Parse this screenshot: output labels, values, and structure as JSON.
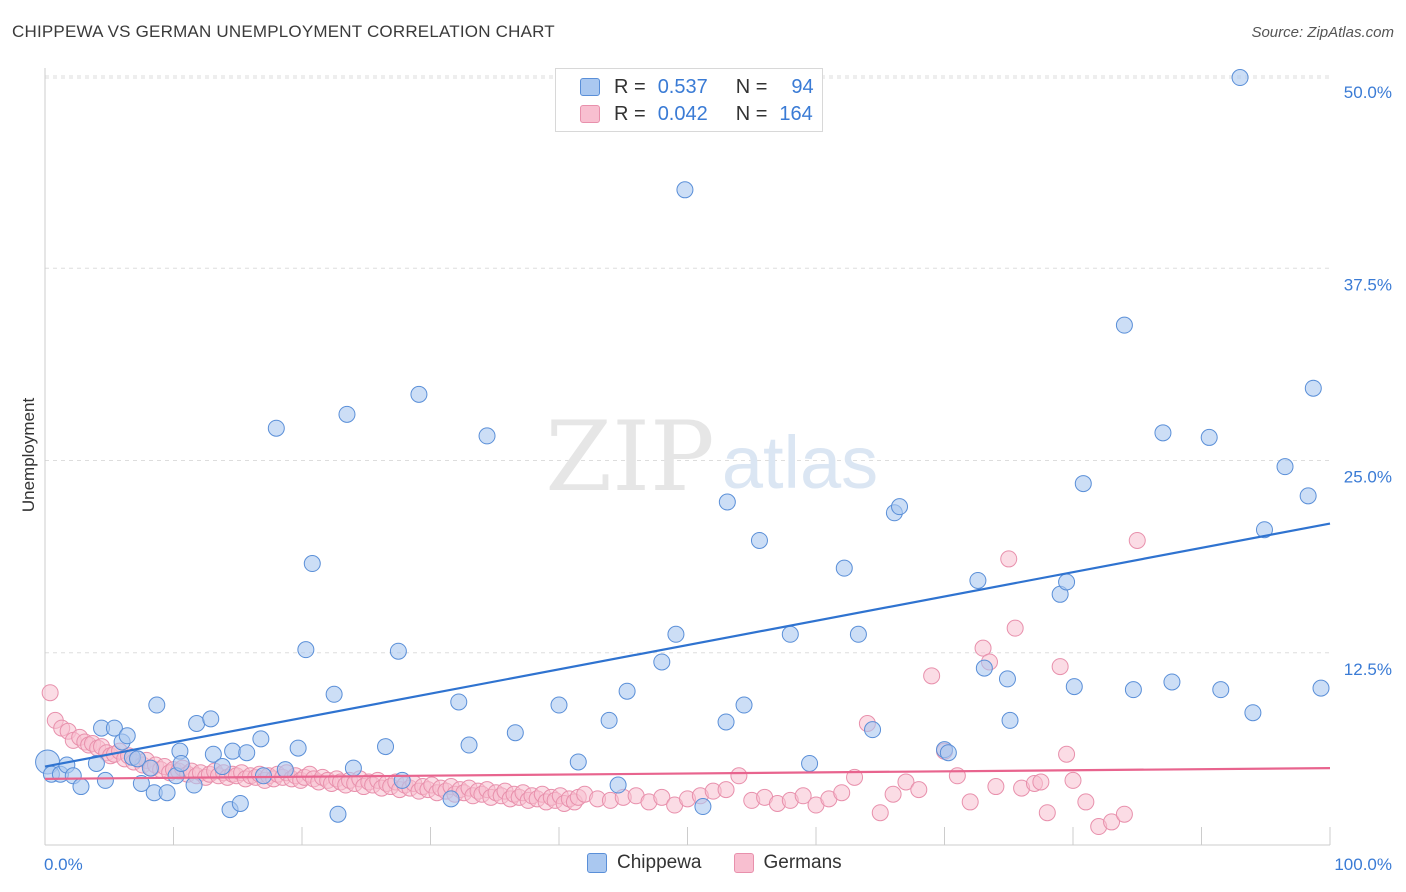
{
  "title": "CHIPPEWA VS GERMAN UNEMPLOYMENT CORRELATION CHART",
  "source": "Source: ZipAtlas.com",
  "watermark": {
    "zip": "ZIP",
    "atlas": "atlas"
  },
  "colors": {
    "chippewa_fill": "#aac8f0",
    "chippewa_stroke": "#5a8fd8",
    "chippewa_line": "#2f73d0",
    "germans_fill": "#f8bfd0",
    "germans_stroke": "#e890ac",
    "germans_line": "#e8648e",
    "tick_label": "#3a7bd5",
    "grid": "#dddddd"
  },
  "legend_top": [
    {
      "r_label": "R =",
      "r_value": "0.537",
      "n_label": "N =",
      "n_value": "94",
      "series": "Chippewa"
    },
    {
      "r_label": "R =",
      "r_value": "0.042",
      "n_label": "N =",
      "n_value": "164",
      "series": "Germans"
    }
  ],
  "chart_data": {
    "type": "scatter",
    "title": "CHIPPEWA VS GERMAN UNEMPLOYMENT CORRELATION CHART",
    "xlabel": "",
    "ylabel": "Unemployment",
    "xlim": [
      0,
      100
    ],
    "ylim": [
      0,
      51
    ],
    "x_tick_labels": [
      "0.0%",
      "100.0%"
    ],
    "y_ticks": [
      12.5,
      25.0,
      37.5,
      50.0
    ],
    "y_tick_labels": [
      "12.5%",
      "25.0%",
      "37.5%",
      "50.0%"
    ],
    "grid": "horizontal dashed",
    "legend": "bottom-center",
    "series": [
      {
        "name": "Chippewa",
        "trend": {
          "x": [
            0,
            100
          ],
          "y": [
            5.1,
            20.9
          ]
        },
        "points": [
          [
            0.2,
            5.4
          ],
          [
            0.5,
            4.6
          ],
          [
            1.2,
            4.6
          ],
          [
            1.7,
            5.2
          ],
          [
            2.2,
            4.5
          ],
          [
            2.8,
            3.8
          ],
          [
            4.0,
            5.3
          ],
          [
            4.4,
            7.6
          ],
          [
            4.7,
            4.2
          ],
          [
            5.4,
            7.6
          ],
          [
            6.0,
            6.7
          ],
          [
            6.4,
            7.1
          ],
          [
            6.8,
            5.7
          ],
          [
            7.2,
            5.6
          ],
          [
            7.5,
            4.0
          ],
          [
            8.2,
            5.0
          ],
          [
            8.5,
            3.4
          ],
          [
            8.7,
            9.1
          ],
          [
            9.5,
            3.4
          ],
          [
            10.2,
            4.5
          ],
          [
            10.5,
            6.1
          ],
          [
            10.6,
            5.3
          ],
          [
            11.6,
            3.9
          ],
          [
            11.8,
            7.9
          ],
          [
            12.9,
            8.2
          ],
          [
            13.1,
            5.9
          ],
          [
            13.8,
            5.1
          ],
          [
            14.4,
            2.3
          ],
          [
            14.6,
            6.1
          ],
          [
            15.2,
            2.7
          ],
          [
            15.7,
            6.0
          ],
          [
            16.8,
            6.9
          ],
          [
            17.0,
            4.5
          ],
          [
            18.0,
            27.1
          ],
          [
            18.7,
            4.9
          ],
          [
            19.7,
            6.3
          ],
          [
            20.3,
            12.7
          ],
          [
            20.8,
            18.3
          ],
          [
            22.5,
            9.8
          ],
          [
            22.8,
            2.0
          ],
          [
            23.5,
            28.0
          ],
          [
            24.0,
            5.0
          ],
          [
            26.5,
            6.4
          ],
          [
            27.5,
            12.6
          ],
          [
            27.8,
            4.2
          ],
          [
            29.1,
            29.3
          ],
          [
            31.6,
            3.0
          ],
          [
            32.2,
            9.3
          ],
          [
            33.0,
            6.5
          ],
          [
            34.4,
            26.6
          ],
          [
            36.6,
            7.3
          ],
          [
            40.0,
            9.1
          ],
          [
            41.5,
            5.4
          ],
          [
            43.9,
            8.1
          ],
          [
            44.6,
            3.9
          ],
          [
            45.3,
            10.0
          ],
          [
            48.0,
            11.9
          ],
          [
            49.1,
            13.7
          ],
          [
            49.8,
            42.6
          ],
          [
            51.2,
            2.5
          ],
          [
            53.0,
            8.0
          ],
          [
            53.1,
            22.3
          ],
          [
            54.4,
            9.1
          ],
          [
            55.6,
            19.8
          ],
          [
            58.0,
            13.7
          ],
          [
            59.5,
            5.3
          ],
          [
            62.2,
            18.0
          ],
          [
            63.3,
            13.7
          ],
          [
            64.4,
            7.5
          ],
          [
            66.1,
            21.6
          ],
          [
            66.5,
            22.0
          ],
          [
            70.0,
            6.2
          ],
          [
            70.3,
            6.0
          ],
          [
            72.6,
            17.2
          ],
          [
            73.1,
            11.5
          ],
          [
            74.9,
            10.8
          ],
          [
            75.1,
            8.1
          ],
          [
            79.0,
            16.3
          ],
          [
            79.5,
            17.1
          ],
          [
            80.1,
            10.3
          ],
          [
            80.8,
            23.5
          ],
          [
            84.0,
            33.8
          ],
          [
            84.7,
            10.1
          ],
          [
            87.0,
            26.8
          ],
          [
            87.7,
            10.6
          ],
          [
            90.6,
            26.5
          ],
          [
            91.5,
            10.1
          ],
          [
            93.0,
            49.9
          ],
          [
            94.0,
            8.6
          ],
          [
            94.9,
            20.5
          ],
          [
            96.5,
            24.6
          ],
          [
            98.3,
            22.7
          ],
          [
            98.7,
            29.7
          ],
          [
            99.3,
            10.2
          ]
        ]
      },
      {
        "name": "Germans",
        "trend": {
          "x": [
            0,
            100
          ],
          "y": [
            4.3,
            5.0
          ]
        },
        "points": [
          [
            0.4,
            9.9
          ],
          [
            0.8,
            8.1
          ],
          [
            1.3,
            7.6
          ],
          [
            1.8,
            7.4
          ],
          [
            2.2,
            6.8
          ],
          [
            2.7,
            7.0
          ],
          [
            3.1,
            6.7
          ],
          [
            3.4,
            6.5
          ],
          [
            3.7,
            6.6
          ],
          [
            4.1,
            6.3
          ],
          [
            4.4,
            6.4
          ],
          [
            4.8,
            6.0
          ],
          [
            5.1,
            5.8
          ],
          [
            5.4,
            5.9
          ],
          [
            5.8,
            6.1
          ],
          [
            6.2,
            5.6
          ],
          [
            6.5,
            5.8
          ],
          [
            6.9,
            5.4
          ],
          [
            7.2,
            5.6
          ],
          [
            7.6,
            5.2
          ],
          [
            7.9,
            5.5
          ],
          [
            8.3,
            5.0
          ],
          [
            8.6,
            5.2
          ],
          [
            9.0,
            4.9
          ],
          [
            9.3,
            5.1
          ],
          [
            9.7,
            4.7
          ],
          [
            10.0,
            4.9
          ],
          [
            10.4,
            4.8
          ],
          [
            10.7,
            5.0
          ],
          [
            11.1,
            4.6
          ],
          [
            11.4,
            4.8
          ],
          [
            11.8,
            4.5
          ],
          [
            12.1,
            4.7
          ],
          [
            12.5,
            4.4
          ],
          [
            12.8,
            4.6
          ],
          [
            13.2,
            4.8
          ],
          [
            13.5,
            4.5
          ],
          [
            13.9,
            4.7
          ],
          [
            14.2,
            4.4
          ],
          [
            14.6,
            4.6
          ],
          [
            14.9,
            4.5
          ],
          [
            15.3,
            4.7
          ],
          [
            15.6,
            4.3
          ],
          [
            16.0,
            4.5
          ],
          [
            16.4,
            4.4
          ],
          [
            16.7,
            4.6
          ],
          [
            17.1,
            4.2
          ],
          [
            17.4,
            4.5
          ],
          [
            17.8,
            4.3
          ],
          [
            18.1,
            4.6
          ],
          [
            18.5,
            4.4
          ],
          [
            18.8,
            4.7
          ],
          [
            19.2,
            4.3
          ],
          [
            19.5,
            4.5
          ],
          [
            19.9,
            4.2
          ],
          [
            20.2,
            4.4
          ],
          [
            20.6,
            4.6
          ],
          [
            20.9,
            4.3
          ],
          [
            21.3,
            4.1
          ],
          [
            21.6,
            4.4
          ],
          [
            22.0,
            4.2
          ],
          [
            22.3,
            4.0
          ],
          [
            22.7,
            4.3
          ],
          [
            23.0,
            4.1
          ],
          [
            23.4,
            3.9
          ],
          [
            23.7,
            4.2
          ],
          [
            24.1,
            4.0
          ],
          [
            24.5,
            4.3
          ],
          [
            24.8,
            3.8
          ],
          [
            25.2,
            4.1
          ],
          [
            25.5,
            3.9
          ],
          [
            25.9,
            4.2
          ],
          [
            26.2,
            3.7
          ],
          [
            26.6,
            4.0
          ],
          [
            26.9,
            3.8
          ],
          [
            27.3,
            4.1
          ],
          [
            27.6,
            3.6
          ],
          [
            28.0,
            3.9
          ],
          [
            28.4,
            3.7
          ],
          [
            28.7,
            4.0
          ],
          [
            29.1,
            3.5
          ],
          [
            29.4,
            3.8
          ],
          [
            29.8,
            3.6
          ],
          [
            30.1,
            3.9
          ],
          [
            30.5,
            3.4
          ],
          [
            30.8,
            3.7
          ],
          [
            31.2,
            3.5
          ],
          [
            31.6,
            3.8
          ],
          [
            31.9,
            3.3
          ],
          [
            32.3,
            3.6
          ],
          [
            32.6,
            3.4
          ],
          [
            33.0,
            3.7
          ],
          [
            33.3,
            3.2
          ],
          [
            33.7,
            3.5
          ],
          [
            34.0,
            3.3
          ],
          [
            34.4,
            3.6
          ],
          [
            34.7,
            3.1
          ],
          [
            35.1,
            3.4
          ],
          [
            35.5,
            3.2
          ],
          [
            35.8,
            3.5
          ],
          [
            36.2,
            3.0
          ],
          [
            36.5,
            3.3
          ],
          [
            36.9,
            3.1
          ],
          [
            37.2,
            3.4
          ],
          [
            37.6,
            2.9
          ],
          [
            37.9,
            3.2
          ],
          [
            38.3,
            3.0
          ],
          [
            38.7,
            3.3
          ],
          [
            39.0,
            2.8
          ],
          [
            39.4,
            3.1
          ],
          [
            39.7,
            2.9
          ],
          [
            40.1,
            3.2
          ],
          [
            40.4,
            2.7
          ],
          [
            40.8,
            3.0
          ],
          [
            41.2,
            2.8
          ],
          [
            41.5,
            3.1
          ],
          [
            42.0,
            3.3
          ],
          [
            43.0,
            3.0
          ],
          [
            44.0,
            2.9
          ],
          [
            45.0,
            3.1
          ],
          [
            46.0,
            3.2
          ],
          [
            47.0,
            2.8
          ],
          [
            48.0,
            3.1
          ],
          [
            49.0,
            2.6
          ],
          [
            50.0,
            3.0
          ],
          [
            51.0,
            3.2
          ],
          [
            52.0,
            3.5
          ],
          [
            53.0,
            3.6
          ],
          [
            54.0,
            4.5
          ],
          [
            55.0,
            2.9
          ],
          [
            56.0,
            3.1
          ],
          [
            57.0,
            2.7
          ],
          [
            58.0,
            2.9
          ],
          [
            59.0,
            3.2
          ],
          [
            60.0,
            2.6
          ],
          [
            61.0,
            3.0
          ],
          [
            62.0,
            3.4
          ],
          [
            63.0,
            4.4
          ],
          [
            64.0,
            7.9
          ],
          [
            65.0,
            2.1
          ],
          [
            66.0,
            3.3
          ],
          [
            67.0,
            4.1
          ],
          [
            68.0,
            3.6
          ],
          [
            69.0,
            11.0
          ],
          [
            70.0,
            6.1
          ],
          [
            71.0,
            4.5
          ],
          [
            72.0,
            2.8
          ],
          [
            73.0,
            12.8
          ],
          [
            73.5,
            11.9
          ],
          [
            74.0,
            3.8
          ],
          [
            75.0,
            18.6
          ],
          [
            75.5,
            14.1
          ],
          [
            76.0,
            3.7
          ],
          [
            77.0,
            4.0
          ],
          [
            77.5,
            4.1
          ],
          [
            78.0,
            2.1
          ],
          [
            79.0,
            11.6
          ],
          [
            79.5,
            5.9
          ],
          [
            80.0,
            4.2
          ],
          [
            81.0,
            2.8
          ],
          [
            82.0,
            1.2
          ],
          [
            83.0,
            1.5
          ],
          [
            84.0,
            2.0
          ],
          [
            85.0,
            19.8
          ]
        ]
      }
    ]
  },
  "legend_bottom": [
    {
      "label": "Chippewa"
    },
    {
      "label": "Germans"
    }
  ]
}
